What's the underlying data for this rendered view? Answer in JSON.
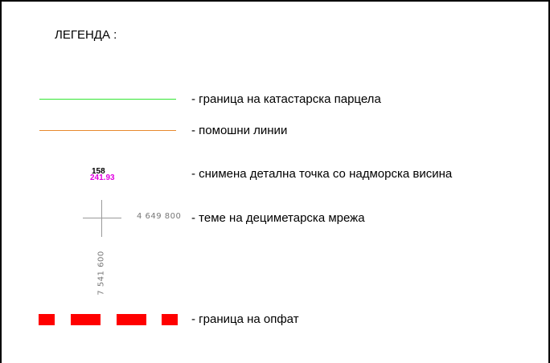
{
  "legend": {
    "title": "ЛЕГЕНДА :",
    "items": [
      {
        "label": "- граница на катастарска парцела",
        "symbol": "line",
        "color": "#33e633"
      },
      {
        "label": "- помошни линии",
        "symbol": "line",
        "color": "#e88a2e"
      },
      {
        "label": "- снимена детална точка со надморска висина",
        "symbol": "survey-point",
        "point_number": "158",
        "elevation": "241.93",
        "number_color": "#000000",
        "elevation_color": "#e100e1"
      },
      {
        "label": "- теме на дециметарска мрежа",
        "symbol": "grid-cross",
        "easting": "4 649 800",
        "northing": "7 541 600",
        "color": "#9a9a9a"
      },
      {
        "label": "- граница на  опфат",
        "symbol": "dashed-line",
        "color": "#ff0000"
      }
    ]
  }
}
